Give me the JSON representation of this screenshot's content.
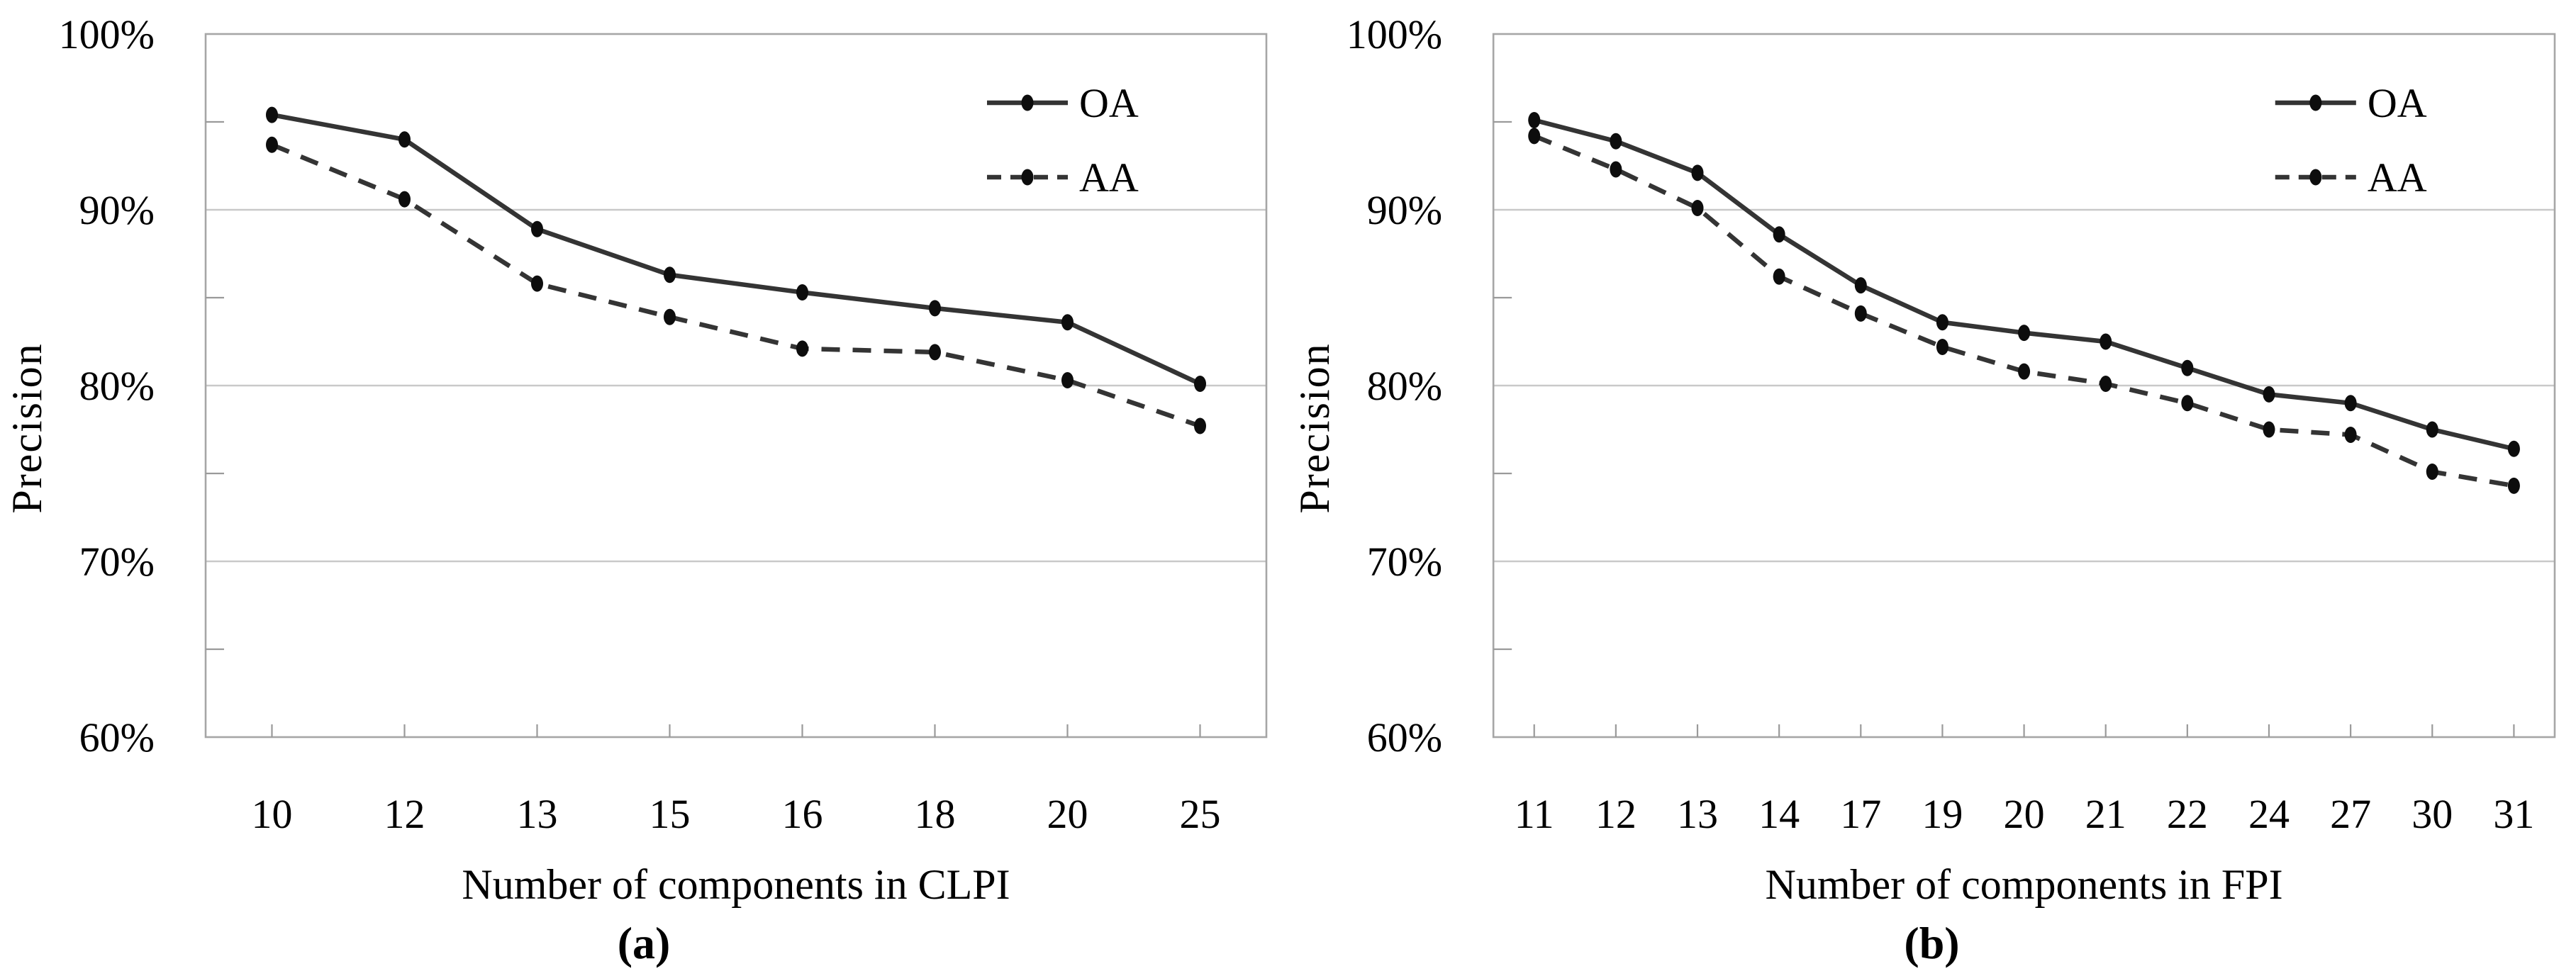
{
  "figure": {
    "background": "#ffffff"
  },
  "colors": {
    "line": "#343434",
    "marker": "#0d0d0d",
    "grid": "#c9c9c9",
    "frame": "#a6a6a6",
    "tick": "#9a9a9a",
    "text": "#000000"
  },
  "chart_data": [
    {
      "type": "line",
      "caption": "(a)",
      "xlabel": "Number of components in CLPI",
      "ylabel": "Precision",
      "categories": [
        "10",
        "12",
        "13",
        "15",
        "16",
        "18",
        "20",
        "25"
      ],
      "ylim": [
        60,
        100
      ],
      "yticks": [
        100,
        90,
        80,
        70,
        60
      ],
      "ytick_labels": [
        "100%",
        "90%",
        "80%",
        "70%",
        "60%"
      ],
      "y_minor_ticks": [
        95,
        85,
        75,
        65
      ],
      "grid": true,
      "legend_position": "top-right",
      "series": [
        {
          "name": "OA",
          "line_style": "solid",
          "marker": "circle",
          "values": [
            95.4,
            94.0,
            88.9,
            86.3,
            85.3,
            84.4,
            83.6,
            80.1
          ]
        },
        {
          "name": "AA",
          "line_style": "dashed",
          "marker": "circle",
          "values": [
            93.7,
            90.6,
            85.8,
            83.9,
            82.1,
            81.9,
            80.3,
            77.7
          ]
        }
      ]
    },
    {
      "type": "line",
      "caption": "(b)",
      "xlabel": "Number of components in FPI",
      "ylabel": "Precision",
      "categories": [
        "11",
        "12",
        "13",
        "14",
        "17",
        "19",
        "20",
        "21",
        "22",
        "24",
        "27",
        "30",
        "31"
      ],
      "ylim": [
        60,
        100
      ],
      "yticks": [
        100,
        90,
        80,
        70,
        60
      ],
      "ytick_labels": [
        "100%",
        "90%",
        "80%",
        "70%",
        "60%"
      ],
      "y_minor_ticks": [
        95,
        85,
        75,
        65
      ],
      "grid": true,
      "legend_position": "top-right",
      "series": [
        {
          "name": "OA",
          "line_style": "solid",
          "marker": "circle",
          "values": [
            95.1,
            93.9,
            92.1,
            88.6,
            85.7,
            83.6,
            83.0,
            82.5,
            81.0,
            79.5,
            79.0,
            77.5,
            76.4
          ]
        },
        {
          "name": "AA",
          "line_style": "dashed",
          "marker": "circle",
          "values": [
            94.2,
            92.3,
            90.1,
            86.2,
            84.1,
            82.2,
            80.8,
            80.1,
            79.0,
            77.5,
            77.2,
            75.1,
            74.3
          ]
        }
      ]
    }
  ]
}
